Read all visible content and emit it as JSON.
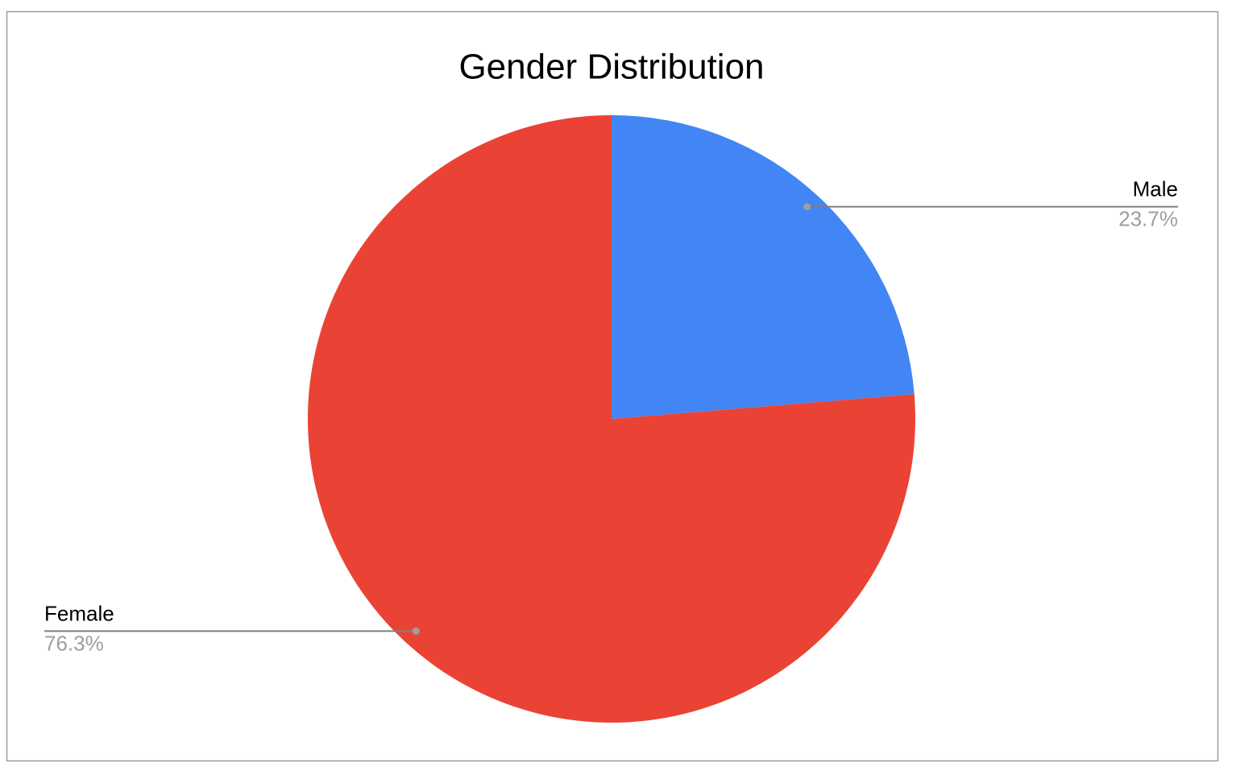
{
  "chart_data": {
    "type": "pie",
    "title": "Gender Distribution",
    "categories": [
      "Male",
      "Female"
    ],
    "values": [
      23.7,
      76.3
    ],
    "value_labels": [
      "23.7%",
      "76.3%"
    ],
    "colors": [
      "#4285f4",
      "#ea4335"
    ]
  }
}
